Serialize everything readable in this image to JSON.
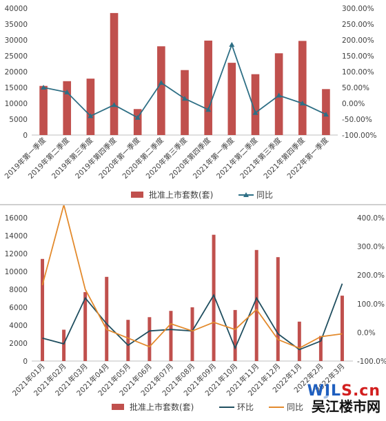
{
  "chart_data": [
    {
      "type": "bar",
      "categories": [
        "2019年第一季度",
        "2019年第二季度",
        "2019年第三季度",
        "2019年第四季度",
        "2020年第一季度",
        "2020年第二季度",
        "2020年第三季度",
        "2020年第四季度",
        "2021年第一季度",
        "2021年第二季度",
        "2021年第三季度",
        "2021年第四季度",
        "2022年第一季度"
      ],
      "series": [
        {
          "name": "批准上市套数(套)",
          "type": "bar",
          "axis": "left",
          "color": "#c0504d",
          "values": [
            15500,
            17000,
            17800,
            38500,
            8200,
            28000,
            20500,
            29800,
            22800,
            19200,
            25800,
            29700,
            14500
          ]
        },
        {
          "name": "同比",
          "type": "line",
          "axis": "right",
          "color": "#2e6f85",
          "values": [
            50,
            35,
            -40,
            -5,
            -45,
            65,
            15,
            -20,
            185,
            -30,
            25,
            0,
            -35
          ]
        }
      ],
      "y_left": {
        "min": 0,
        "max": 40000,
        "ticks": [
          "0",
          "5000",
          "10000",
          "15000",
          "20000",
          "25000",
          "30000",
          "35000",
          "40000"
        ]
      },
      "y_right": {
        "min": -100,
        "max": 300,
        "ticks": [
          "-100.00%",
          "-50.00%",
          "0.00%",
          "50.00%",
          "100.00%",
          "150.00%",
          "200.00%",
          "250.00%",
          "300.00%"
        ]
      },
      "legend": {
        "position": "bottom",
        "items": [
          "批准上市套数(套)",
          "同比"
        ]
      },
      "grid": false
    },
    {
      "type": "bar",
      "categories": [
        "2021年01月",
        "2021年02月",
        "2021年03月",
        "2021年04月",
        "2021年05月",
        "2021年06月",
        "2021年07月",
        "2021年08月",
        "2021年09月",
        "2021年10月",
        "2021年11月",
        "2021年12月",
        "2022年1月",
        "2022年2月",
        "2022年3月"
      ],
      "series": [
        {
          "name": "批准上市套数(套)",
          "type": "bar",
          "axis": "left",
          "color": "#c0504d",
          "values": [
            11400,
            3500,
            7700,
            9400,
            4600,
            4900,
            5600,
            6000,
            14100,
            5700,
            12400,
            11600,
            4400,
            2800,
            7300
          ]
        },
        {
          "name": "环比",
          "type": "line",
          "axis": "right",
          "color": "#1f4e5f",
          "values": [
            -20,
            -40,
            120,
            30,
            -45,
            5,
            10,
            5,
            130,
            -55,
            120,
            -5,
            -60,
            -30,
            170
          ]
        },
        {
          "name": "同比",
          "type": "line",
          "axis": "right",
          "color": "#e38a2c",
          "values": [
            165,
            445,
            150,
            10,
            -20,
            -50,
            30,
            5,
            35,
            10,
            80,
            -25,
            -55,
            -15,
            -5
          ]
        }
      ],
      "y_left": {
        "min": 0,
        "max": 16000,
        "ticks": [
          "0",
          "2000",
          "4000",
          "6000",
          "8000",
          "10000",
          "12000",
          "14000",
          "16000"
        ]
      },
      "y_right": {
        "min": -100,
        "max": 400,
        "ticks": [
          "-100.0%",
          "0.0%",
          "100.0%",
          "200.0%",
          "300.0%",
          "400.0%"
        ]
      },
      "legend": {
        "position": "bottom",
        "items": [
          "批准上市套数(套)",
          "环比",
          "同比"
        ]
      },
      "grid": false
    }
  ],
  "watermark": {
    "line1_a": "WJL",
    "line1_b": "S.cn",
    "line2": "吴江楼市网"
  }
}
